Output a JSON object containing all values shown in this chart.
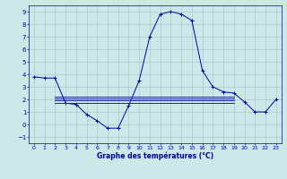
{
  "title": "Graphe des températures (°C)",
  "bg_color": "#cce8e8",
  "grid_color": "#aacccc",
  "line_color": "#0000aa",
  "xlim": [
    -0.5,
    23.5
  ],
  "ylim": [
    -1.5,
    9.5
  ],
  "yticks": [
    -1,
    0,
    1,
    2,
    3,
    4,
    5,
    6,
    7,
    8,
    9
  ],
  "xticks": [
    0,
    1,
    2,
    3,
    4,
    5,
    6,
    7,
    8,
    9,
    10,
    11,
    12,
    13,
    14,
    15,
    16,
    17,
    18,
    19,
    20,
    21,
    22,
    23
  ],
  "main_line": {
    "x": [
      0,
      1,
      2,
      3,
      4,
      5,
      6,
      7,
      8,
      9,
      10,
      11,
      12,
      13,
      14,
      15,
      16,
      17,
      18,
      19,
      20,
      21,
      22,
      23
    ],
    "y": [
      3.8,
      3.7,
      3.7,
      1.7,
      1.6,
      0.8,
      0.3,
      -0.3,
      -0.3,
      1.5,
      3.5,
      7.0,
      8.8,
      9.0,
      8.8,
      8.3,
      4.3,
      3.0,
      2.6,
      2.5,
      1.8,
      1.0,
      1.0,
      2.0
    ]
  },
  "flat_lines": [
    {
      "x": [
        2,
        19
      ],
      "y": [
        1.75,
        1.75
      ]
    },
    {
      "x": [
        2,
        19
      ],
      "y": [
        1.9,
        1.9
      ]
    },
    {
      "x": [
        2,
        19
      ],
      "y": [
        2.05,
        2.05
      ]
    },
    {
      "x": [
        2,
        19
      ],
      "y": [
        2.2,
        2.2
      ]
    }
  ]
}
